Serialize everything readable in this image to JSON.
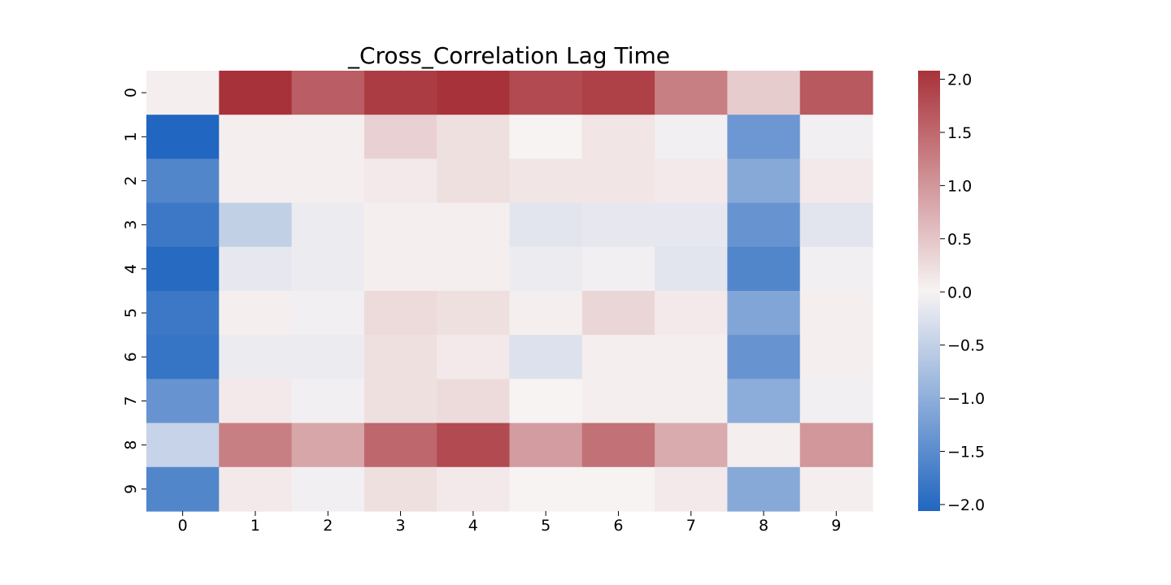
{
  "chart_data": {
    "type": "heatmap",
    "title": "_Cross_Correlation Lag Time",
    "xlabel": "",
    "ylabel": "",
    "x_categories": [
      "0",
      "1",
      "2",
      "3",
      "4",
      "5",
      "6",
      "7",
      "8",
      "9"
    ],
    "y_categories": [
      "0",
      "1",
      "2",
      "3",
      "4",
      "5",
      "6",
      "7",
      "8",
      "9"
    ],
    "values": [
      [
        0.05,
        2.05,
        1.55,
        1.9,
        2.05,
        1.75,
        1.85,
        1.2,
        0.4,
        1.6
      ],
      [
        -2.05,
        0.05,
        0.05,
        0.35,
        0.2,
        0.0,
        0.15,
        -0.05,
        -1.3,
        -0.05
      ],
      [
        -1.55,
        0.05,
        0.05,
        0.1,
        0.2,
        0.15,
        0.15,
        0.1,
        -1.05,
        0.1
      ],
      [
        -1.75,
        -0.5,
        -0.1,
        0.05,
        0.05,
        -0.2,
        -0.15,
        -0.15,
        -1.35,
        -0.2
      ],
      [
        -1.95,
        -0.15,
        -0.1,
        0.05,
        0.05,
        -0.1,
        -0.05,
        -0.2,
        -1.55,
        -0.05
      ],
      [
        -1.75,
        0.05,
        -0.05,
        0.25,
        0.2,
        0.05,
        0.3,
        0.1,
        -1.1,
        0.05
      ],
      [
        -1.8,
        -0.1,
        -0.1,
        0.2,
        0.1,
        -0.25,
        0.05,
        0.05,
        -1.35,
        0.05
      ],
      [
        -1.35,
        0.1,
        -0.05,
        0.2,
        0.25,
        0.0,
        0.05,
        0.05,
        -1.0,
        -0.05
      ],
      [
        -0.45,
        1.2,
        0.8,
        1.45,
        1.75,
        0.9,
        1.35,
        0.75,
        0.05,
        0.95
      ],
      [
        -1.55,
        0.1,
        -0.05,
        0.2,
        0.1,
        0.0,
        0.0,
        0.1,
        -1.05,
        0.05
      ]
    ],
    "colorbar": {
      "vmin": -2.0,
      "vmax": 2.0,
      "ticks": [
        "2.0",
        "1.5",
        "1.0",
        "0.5",
        "0.0",
        "−0.5",
        "−1.0",
        "−1.5",
        "−2.0"
      ],
      "colors": {
        "low": "#2166c0",
        "mid": "#f7f3f3",
        "high": "#a8323a"
      }
    },
    "grid": false,
    "legend": "colorbar-right"
  }
}
